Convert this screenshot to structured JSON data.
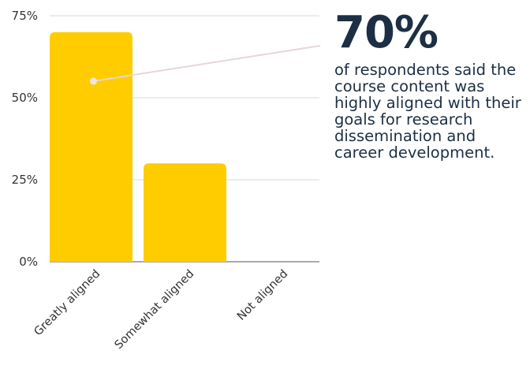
{
  "chart_data": {
    "type": "bar",
    "categories": [
      "Greatly aligned",
      "Somewhat aligned",
      "Not aligned"
    ],
    "values": [
      70,
      30,
      0
    ],
    "ylim": [
      0,
      75
    ],
    "yticks": [
      0,
      25,
      50,
      75
    ],
    "ytick_format": "%",
    "grid": true,
    "bar_color": "#ffcc00",
    "annotation": {
      "value": "70%",
      "text": "of respondents said the course content was highly aligned with their goals for research dissemination and career development.",
      "points_to_category": "Greatly aligned"
    }
  },
  "colors": {
    "grid": "#d9d9d9",
    "axis": "#555555",
    "leader_line": "#e6d6d6",
    "callout_text": "#1c2f44"
  }
}
